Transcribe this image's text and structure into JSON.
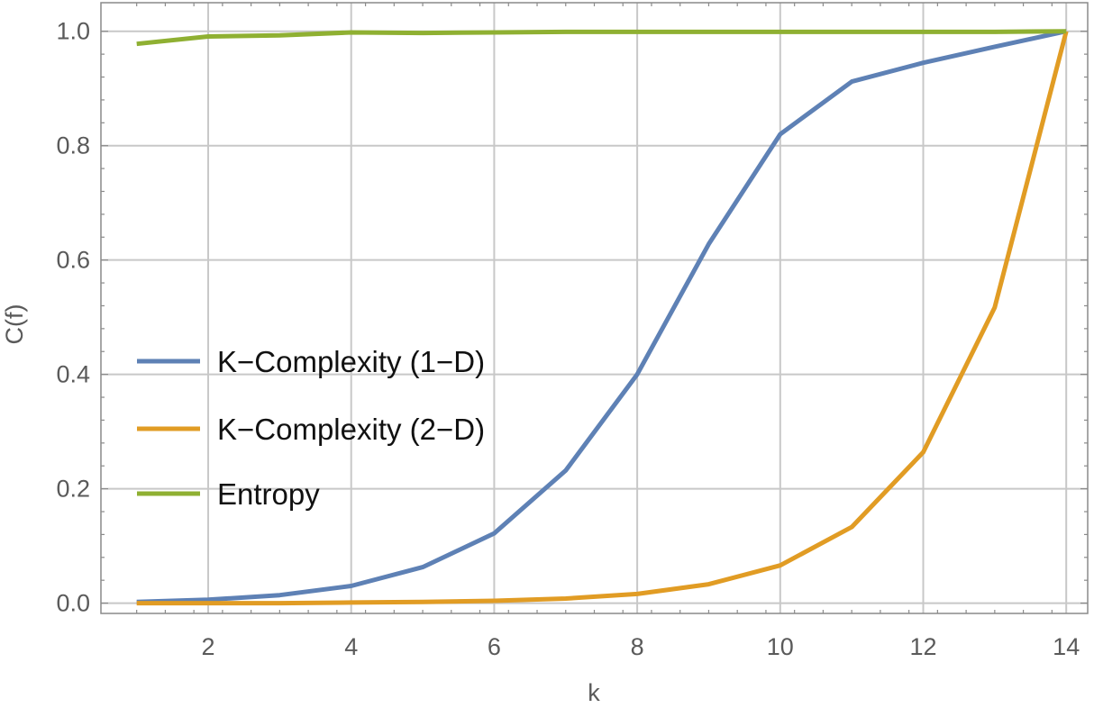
{
  "chart_data": {
    "type": "line",
    "title": "",
    "xlabel": "k",
    "ylabel": "C(f)",
    "xlim": [
      0.5,
      14.3
    ],
    "ylim": [
      -0.018,
      1.05
    ],
    "x_ticks": [
      2,
      4,
      6,
      8,
      10,
      12,
      14
    ],
    "x_tick_labels": [
      "2",
      "4",
      "6",
      "8",
      "10",
      "12",
      "14"
    ],
    "y_ticks": [
      0,
      0.2,
      0.4,
      0.6,
      0.8,
      1.0
    ],
    "y_tick_labels": [
      "0.0",
      "0.2",
      "0.4",
      "0.6",
      "0.8",
      "1.0"
    ],
    "grid": true,
    "legend_position": "center-left",
    "x": [
      1,
      2,
      3,
      4,
      5,
      6,
      7,
      8,
      9,
      10,
      11,
      12,
      13,
      14
    ],
    "series": [
      {
        "name": "K−Complexity (1−D)",
        "color": "#5e81b5",
        "values": [
          0.002,
          0.006,
          0.014,
          0.03,
          0.063,
          0.122,
          0.232,
          0.4,
          0.628,
          0.82,
          0.912,
          0.945,
          0.973,
          1.0
        ]
      },
      {
        "name": "K−Complexity (2−D)",
        "color": "#e19c24",
        "values": [
          0.0,
          0.0,
          0.0,
          0.001,
          0.002,
          0.004,
          0.008,
          0.016,
          0.033,
          0.066,
          0.133,
          0.264,
          0.517,
          1.0
        ]
      },
      {
        "name": "Entropy",
        "color": "#8fb032",
        "values": [
          0.978,
          0.991,
          0.993,
          0.998,
          0.997,
          0.998,
          0.999,
          0.999,
          0.999,
          0.999,
          0.999,
          0.999,
          0.999,
          1.0
        ]
      }
    ]
  }
}
